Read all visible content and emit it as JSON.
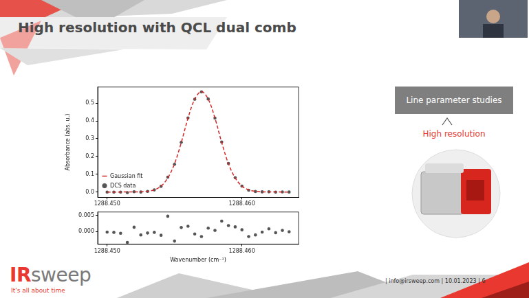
{
  "slide": {
    "title": "High resolution with QCL dual comb",
    "box": "Line parameter studies",
    "highlight": "High resolution",
    "logo": "IRsweep",
    "tagline": "It's all about time",
    "footer": "| info@irsweep.com   |   10.01.2023   |   6"
  },
  "chart_data": [
    {
      "type": "scatter",
      "ylabel": "Absorbance (abs. u.)",
      "x": [
        1288.45,
        1288.4505,
        1288.451,
        1288.4515,
        1288.452,
        1288.4525,
        1288.453,
        1288.4535,
        1288.454,
        1288.4545,
        1288.455,
        1288.4555,
        1288.456,
        1288.4565,
        1288.457,
        1288.4575,
        1288.458,
        1288.4585,
        1288.459,
        1288.4595,
        1288.46,
        1288.4605,
        1288.461,
        1288.4615,
        1288.462,
        1288.4625,
        1288.463,
        1288.4635
      ],
      "series": [
        {
          "name": "Gaussian fit",
          "type": "line",
          "line_style": "dashed",
          "color": "#d62728",
          "values": [
            0,
            0,
            0,
            0.0001,
            0.0002,
            0.001,
            0.004,
            0.012,
            0.033,
            0.079,
            0.159,
            0.278,
            0.415,
            0.522,
            0.565,
            0.522,
            0.415,
            0.278,
            0.159,
            0.079,
            0.033,
            0.012,
            0.004,
            0.001,
            0.0002,
            0.0001,
            0,
            0
          ]
        },
        {
          "name": "DCS data",
          "type": "scatter",
          "marker": "circle",
          "color": "#555555",
          "values": [
            -0.0002,
            -0.0003,
            -0.0006,
            -0.0033,
            0.0015,
            -0.0001,
            0.0035,
            0.0117,
            0.0318,
            0.0837,
            0.156,
            0.2792,
            0.4166,
            0.5212,
            0.5634,
            0.523,
            0.4153,
            0.2812,
            0.1608,
            0.0804,
            0.0335,
            0.0104,
            0.0029,
            0.0008,
            0.001,
            -0.0003,
            0.0003,
            -0.0001
          ]
        }
      ],
      "xlim": [
        1288.4493,
        1288.4642
      ],
      "xticks": [
        {
          "value": 1288.45,
          "label": "1288.450"
        },
        {
          "value": 1288.46,
          "label": "1288.460"
        }
      ],
      "ylim": [
        -0.03,
        0.59
      ],
      "yticks": [
        {
          "value": 0,
          "label": "0.0"
        },
        0.1,
        0.2,
        0.3,
        0.4,
        0.5
      ],
      "grid": false,
      "legend": "upper right"
    },
    {
      "type": "scatter",
      "xlabel": "Wavenumber (cm⁻¹)",
      "x": [
        1288.45,
        1288.4505,
        1288.451,
        1288.4515,
        1288.452,
        1288.4525,
        1288.453,
        1288.4535,
        1288.454,
        1288.4545,
        1288.455,
        1288.4555,
        1288.456,
        1288.4565,
        1288.457,
        1288.4575,
        1288.458,
        1288.4585,
        1288.459,
        1288.4595,
        1288.46,
        1288.4605,
        1288.461,
        1288.4615,
        1288.462,
        1288.4625,
        1288.463,
        1288.4635
      ],
      "values": [
        -0.0002,
        -0.0003,
        -0.0006,
        -0.0034,
        0.0013,
        -0.0011,
        -0.0005,
        -0.0003,
        -0.0012,
        0.0047,
        -0.003,
        0.0012,
        0.0016,
        -0.0008,
        -0.0016,
        0.001,
        0.0003,
        0.0032,
        0.0018,
        0.0014,
        0.0005,
        -0.0016,
        -0.0011,
        -0.0002,
        0.0008,
        -0.0004,
        0.0003,
        -0.0001
      ],
      "color": "#555555",
      "marker": "circle",
      "xlim": [
        1288.4493,
        1288.4642
      ],
      "xticks": [
        {
          "value": 1288.45,
          "label": "1288.450"
        },
        {
          "value": 1288.46,
          "label": "1288.460"
        }
      ],
      "ylim": [
        -0.004,
        0.006
      ],
      "yticks": [
        {
          "value": 0,
          "label": "0.000"
        },
        {
          "value": 0.005,
          "label": "0.005"
        }
      ],
      "grid": false
    }
  ]
}
